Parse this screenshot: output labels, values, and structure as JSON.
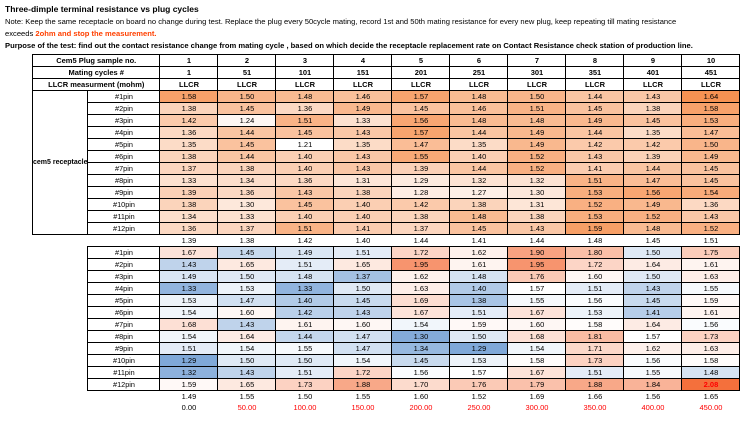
{
  "header": {
    "title": "Three-dimple terminal resistance vs plug cycles",
    "note_line1": "Note: Keep the same receptacle on board no change during test. Replace the plug every 50cycle mating, record 1st and 50th mating resistance for every new plug, keep repeating till mating resistance",
    "note_line2_prefix": "exceeds ",
    "note_line2_highlight": "2ohm and stop the measurement.",
    "purpose": "Purpose of the test: find out the contact resistance change from mating cycle , based on which decide the receptacle replacement rate on Contact Resistance check station of production line."
  },
  "colors": {
    "note_highlight": "#FF4000",
    "axis_red": "#FF0000",
    "axis_first": "#000000",
    "highlight_value_color": "#FF0000",
    "border": "#000000"
  },
  "table": {
    "labels": {
      "sample_no": "Cem5 Plug sample no.",
      "mating_cycles": "Mating cycles #",
      "llcr": "LLCR measurment (mohm)",
      "llcr_cell": "LLCR",
      "receptacle": "cem5 receptacle"
    },
    "sample_numbers": [
      "1",
      "2",
      "3",
      "4",
      "5",
      "6",
      "7",
      "8",
      "9",
      "10"
    ],
    "mating_cycles": [
      "1",
      "51",
      "101",
      "151",
      "201",
      "251",
      "301",
      "351",
      "401",
      "451"
    ],
    "pins": [
      "#1pin",
      "#2pin",
      "#3pin",
      "#4pin",
      "#5pin",
      "#6pin",
      "#7pin",
      "#8pin",
      "#9pin",
      "#10pin",
      "#11pin",
      "#12pin"
    ],
    "block1": {
      "scale": {
        "min": 1.21,
        "max": 1.64,
        "max_color": "#F69252"
      },
      "values": [
        [
          "1.58",
          "1.50",
          "1.48",
          "1.46",
          "1.57",
          "1.48",
          "1.50",
          "1.44",
          "1.43",
          "1.64"
        ],
        [
          "1.38",
          "1.45",
          "1.36",
          "1.49",
          "1.45",
          "1.46",
          "1.51",
          "1.45",
          "1.38",
          "1.58"
        ],
        [
          "1.42",
          "1.24",
          "1.51",
          "1.33",
          "1.56",
          "1.48",
          "1.48",
          "1.49",
          "1.45",
          "1.53"
        ],
        [
          "1.36",
          "1.44",
          "1.45",
          "1.43",
          "1.57",
          "1.44",
          "1.49",
          "1.44",
          "1.35",
          "1.47"
        ],
        [
          "1.35",
          "1.45",
          "1.21",
          "1.35",
          "1.47",
          "1.35",
          "1.49",
          "1.42",
          "1.42",
          "1.50"
        ],
        [
          "1.38",
          "1.44",
          "1.40",
          "1.43",
          "1.55",
          "1.40",
          "1.52",
          "1.43",
          "1.39",
          "1.49"
        ],
        [
          "1.37",
          "1.38",
          "1.40",
          "1.43",
          "1.39",
          "1.44",
          "1.52",
          "1.41",
          "1.44",
          "1.45"
        ],
        [
          "1.33",
          "1.34",
          "1.36",
          "1.31",
          "1.29",
          "1.32",
          "1.32",
          "1.51",
          "1.47",
          "1.45"
        ],
        [
          "1.39",
          "1.36",
          "1.43",
          "1.38",
          "1.28",
          "1.27",
          "1.30",
          "1.53",
          "1.56",
          "1.54"
        ],
        [
          "1.38",
          "1.30",
          "1.45",
          "1.40",
          "1.42",
          "1.38",
          "1.31",
          "1.52",
          "1.49",
          "1.36"
        ],
        [
          "1.34",
          "1.33",
          "1.40",
          "1.40",
          "1.38",
          "1.48",
          "1.38",
          "1.53",
          "1.52",
          "1.43"
        ],
        [
          "1.36",
          "1.37",
          "1.51",
          "1.41",
          "1.37",
          "1.45",
          "1.43",
          "1.59",
          "1.48",
          "1.52"
        ]
      ],
      "averages": [
        "1.39",
        "1.38",
        "1.42",
        "1.40",
        "1.44",
        "1.41",
        "1.44",
        "1.48",
        "1.45",
        "1.51"
      ]
    },
    "block2": {
      "scale": {
        "min": 1.29,
        "mid": 1.57,
        "max": 2.08,
        "min_color": "#7FA8D8",
        "max_color": "#F4703C"
      },
      "highlight_value": "2.08",
      "values": [
        [
          "1.67",
          "1.45",
          "1.49",
          "1.51",
          "1.72",
          "1.62",
          "1.90",
          "1.80",
          "1.50",
          "1.75"
        ],
        [
          "1.43",
          "1.65",
          "1.51",
          "1.65",
          "1.95",
          "1.61",
          "1.95",
          "1.72",
          "1.64",
          "1.61"
        ],
        [
          "1.49",
          "1.50",
          "1.48",
          "1.37",
          "1.62",
          "1.48",
          "1.76",
          "1.60",
          "1.50",
          "1.63"
        ],
        [
          "1.33",
          "1.53",
          "1.33",
          "1.50",
          "1.63",
          "1.40",
          "1.57",
          "1.51",
          "1.43",
          "1.55"
        ],
        [
          "1.53",
          "1.47",
          "1.40",
          "1.45",
          "1.69",
          "1.38",
          "1.55",
          "1.56",
          "1.45",
          "1.59"
        ],
        [
          "1.54",
          "1.60",
          "1.42",
          "1.43",
          "1.67",
          "1.51",
          "1.67",
          "1.53",
          "1.41",
          "1.61"
        ],
        [
          "1.68",
          "1.43",
          "1.61",
          "1.60",
          "1.54",
          "1.59",
          "1.60",
          "1.58",
          "1.64",
          "1.56"
        ],
        [
          "1.54",
          "1.64",
          "1.44",
          "1.47",
          "1.30",
          "1.50",
          "1.68",
          "1.81",
          "1.57",
          "1.73"
        ],
        [
          "1.51",
          "1.54",
          "1.55",
          "1.47",
          "1.34",
          "1.29",
          "1.54",
          "1.71",
          "1.62",
          "1.63"
        ],
        [
          "1.29",
          "1.50",
          "1.50",
          "1.54",
          "1.45",
          "1.53",
          "1.58",
          "1.73",
          "1.56",
          "1.58"
        ],
        [
          "1.32",
          "1.43",
          "1.51",
          "1.72",
          "1.56",
          "1.57",
          "1.67",
          "1.51",
          "1.55",
          "1.48"
        ],
        [
          "1.59",
          "1.65",
          "1.73",
          "1.88",
          "1.70",
          "1.76",
          "1.79",
          "1.88",
          "1.84",
          "2.08"
        ]
      ],
      "averages": [
        "1.49",
        "1.55",
        "1.50",
        "1.55",
        "1.60",
        "1.52",
        "1.69",
        "1.66",
        "1.56",
        "1.65"
      ]
    },
    "cycle_axis": [
      "0.00",
      "50.00",
      "100.00",
      "150.00",
      "200.00",
      "250.00",
      "300.00",
      "350.00",
      "400.00",
      "450.00"
    ]
  }
}
